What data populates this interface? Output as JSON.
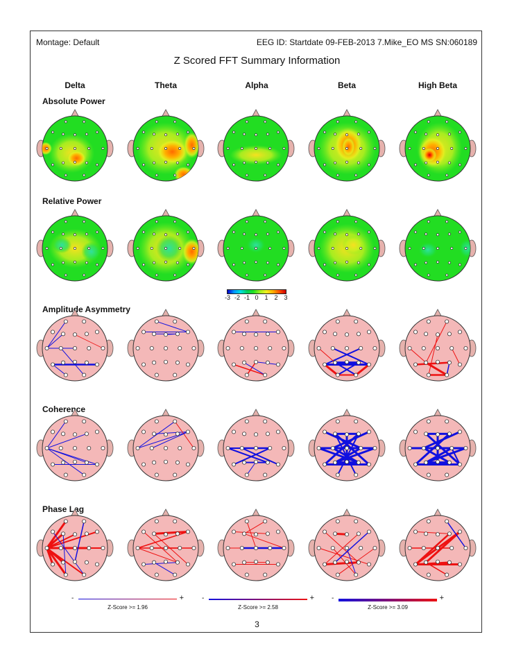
{
  "header": {
    "montage": "Montage:  Default",
    "eeg_id": "EEG ID:  Startdate 09-FEB-2013 7.Mike_EO MS SN:060189"
  },
  "title": "Z Scored FFT Summary Information",
  "columns": [
    "Delta",
    "Theta",
    "Alpha",
    "Beta",
    "High Beta"
  ],
  "rows": [
    "Absolute Power",
    "Relative Power",
    "Amplitude Asymmetry",
    "Coherence",
    "Phase Lag"
  ],
  "colors": {
    "head_topomap_base": "#22dd22",
    "head_connectivity": "#f4b8b8",
    "ear": "#e6b2ad",
    "line_negative": "#1010e0",
    "line_positive": "#ee1111"
  },
  "color_scale": {
    "ticks": [
      "-3",
      "-2",
      "-1",
      "0",
      "1",
      "2",
      "3"
    ]
  },
  "legends": [
    {
      "minus": "-",
      "plus": "+",
      "label": "Z-Score >= 1.96"
    },
    {
      "minus": "-",
      "plus": "+",
      "label": "Z-Score >= 2.58"
    },
    {
      "minus": "-",
      "plus": "+",
      "label": "Z-Score >= 3.09"
    }
  ],
  "page_number": "3"
}
